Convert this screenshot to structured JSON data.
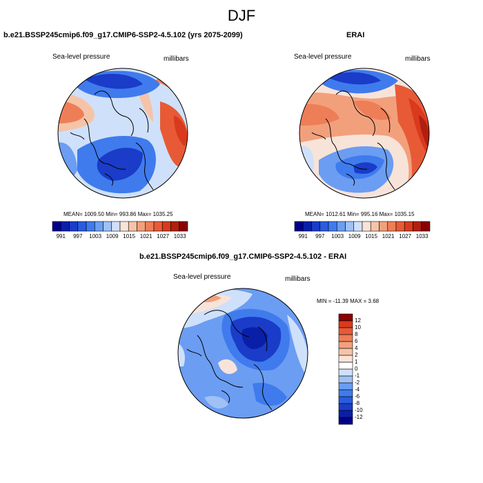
{
  "figure_title": "DJF",
  "panels": {
    "model": {
      "title": "b.e21.BSSP245cmip6.f09_g17.CMIP6-SSP2-4.5.102 (yrs 2075-2099)",
      "left_label": "Sea-level pressure",
      "right_label": "millibars",
      "stats": "MEAN= 1009.50   Min= 993.86   Max= 1035.25"
    },
    "obs": {
      "title": "ERAI",
      "left_label": "Sea-level pressure",
      "right_label": "millibars",
      "stats": "MEAN= 1012.61   Min= 995.16   Max= 1035.15"
    },
    "diff": {
      "title": "b.e21.BSSP245cmip6.f09_g17.CMIP6-SSP2-4.5.102 - ERAI",
      "left_label": "Sea-level pressure",
      "right_label": "millibars",
      "stats": "MIN = -11.39 MAX =   3.68"
    }
  },
  "colorbar_slp": {
    "colors": [
      "#00008b",
      "#0a1fa8",
      "#1a3cc8",
      "#2a5be0",
      "#3f7bed",
      "#6b9df2",
      "#9fc1f5",
      "#cfe0fa",
      "#f8e3d9",
      "#f5c4a8",
      "#f2a07c",
      "#ee7e57",
      "#e85a36",
      "#d93a1d",
      "#b21f0e",
      "#8b0000"
    ],
    "labels": [
      "991",
      "997",
      "1003",
      "1009",
      "1015",
      "1021",
      "1027",
      "1033"
    ]
  },
  "colorbar_diff": {
    "colors": [
      "#00008b",
      "#0a1fa8",
      "#1a3cc8",
      "#2a5be0",
      "#3f7bed",
      "#6b9df2",
      "#9fc1f5",
      "#cfe0fa",
      "#ffffff",
      "#f8e3d9",
      "#f5c4a8",
      "#f2a07c",
      "#ee7e57",
      "#e85a36",
      "#d93a1d",
      "#8b0000"
    ],
    "labels": [
      "12",
      "10",
      "8",
      "6",
      "4",
      "2",
      "1",
      "0",
      "-1",
      "-2",
      "-4",
      "-6",
      "-8",
      "-10",
      "-12"
    ]
  },
  "map_colors": {
    "deep_blue": "#1a3cc8",
    "mid_blue": "#3f7bed",
    "light_blue": "#9fc1f5",
    "pale_blue": "#cfe0fa",
    "pale_red": "#f8e3d9",
    "light_red": "#f2a07c",
    "mid_red": "#ee7e57",
    "strong_red": "#d93a1d",
    "dark_red": "#b21f0e"
  }
}
